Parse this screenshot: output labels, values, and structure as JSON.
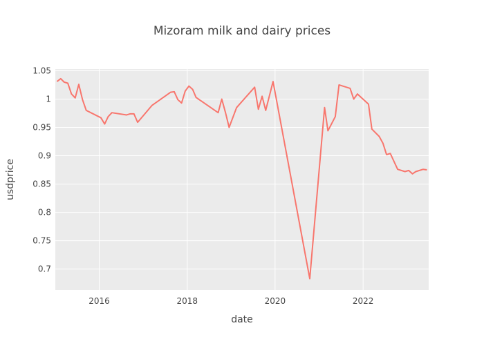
{
  "chart_data": {
    "type": "line",
    "title": "Mizoram milk and dairy prices",
    "xlabel": "date",
    "ylabel": "usdprice",
    "xlim": [
      "2015-01-01",
      "2023-06-30"
    ],
    "ylim": [
      0.663,
      1.053
    ],
    "x_ticks": [
      {
        "label": "2016",
        "date": "2016-01-01"
      },
      {
        "label": "2018",
        "date": "2018-01-01"
      },
      {
        "label": "2020",
        "date": "2020-01-01"
      },
      {
        "label": "2022",
        "date": "2022-01-01"
      }
    ],
    "y_ticks": [
      {
        "label": "0.7",
        "value": 0.7
      },
      {
        "label": "0.75",
        "value": 0.75
      },
      {
        "label": "0.8",
        "value": 0.8
      },
      {
        "label": "0.85",
        "value": 0.85
      },
      {
        "label": "0.9",
        "value": 0.9
      },
      {
        "label": "0.95",
        "value": 0.95
      },
      {
        "label": "1",
        "value": 1.0
      },
      {
        "label": "1.05",
        "value": 1.05
      }
    ],
    "grid": true,
    "plot_background": "#ebebeb",
    "grid_color": "#ffffff",
    "series": [
      {
        "color": "#f8766d",
        "x": [
          "2015-01-15",
          "2015-02-15",
          "2015-03-15",
          "2015-04-15",
          "2015-05-15",
          "2015-06-15",
          "2015-07-15",
          "2015-08-15",
          "2015-09-15",
          "2016-01-15",
          "2016-02-15",
          "2016-03-15",
          "2016-04-15",
          "2016-08-15",
          "2016-09-15",
          "2016-10-15",
          "2016-11-15",
          "2017-03-15",
          "2017-08-15",
          "2017-09-15",
          "2017-10-15",
          "2017-11-15",
          "2017-12-15",
          "2018-01-15",
          "2018-02-15",
          "2018-03-15",
          "2018-09-15",
          "2018-10-15",
          "2018-11-15",
          "2018-12-15",
          "2019-02-15",
          "2019-07-15",
          "2019-08-15",
          "2019-09-15",
          "2019-10-15",
          "2019-12-15",
          "2020-10-15",
          "2021-02-15",
          "2021-03-15",
          "2021-05-15",
          "2021-06-15",
          "2021-09-15",
          "2021-10-15",
          "2021-11-15",
          "2022-02-15",
          "2022-03-15",
          "2022-05-15",
          "2022-06-15",
          "2022-07-15",
          "2022-08-15",
          "2022-10-15",
          "2022-12-15",
          "2023-01-15",
          "2023-02-15",
          "2023-03-15",
          "2023-05-15",
          "2023-06-15"
        ],
        "values": [
          1.031,
          1.036,
          1.03,
          1.028,
          1.009,
          1.002,
          1.026,
          0.999,
          0.98,
          0.967,
          0.956,
          0.969,
          0.976,
          0.972,
          0.974,
          0.974,
          0.959,
          0.989,
          1.012,
          1.013,
          0.999,
          0.993,
          1.014,
          1.023,
          1.017,
          1.003,
          0.976,
          1.0,
          0.976,
          0.95,
          0.985,
          1.021,
          0.982,
          1.005,
          0.98,
          1.031,
          0.683,
          0.985,
          0.944,
          0.969,
          1.025,
          1.019,
          1.0,
          1.009,
          0.991,
          0.947,
          0.934,
          0.922,
          0.902,
          0.904,
          0.876,
          0.872,
          0.874,
          0.868,
          0.872,
          0.876,
          0.875
        ]
      }
    ]
  }
}
